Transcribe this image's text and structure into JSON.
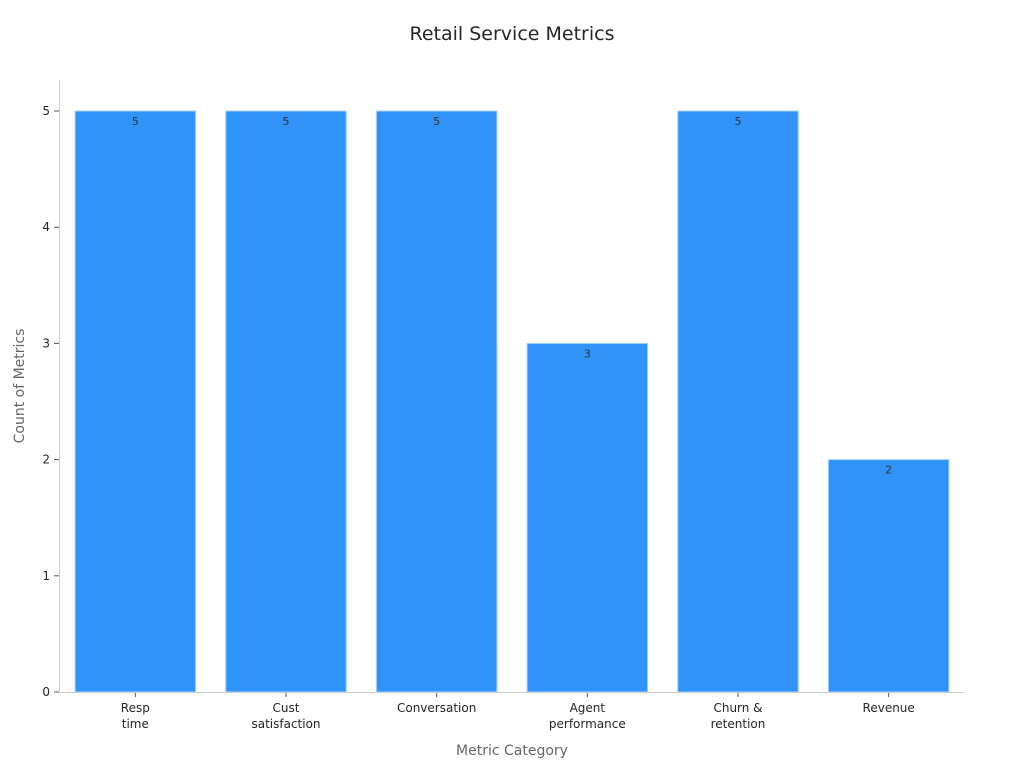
{
  "chart_data": {
    "type": "bar",
    "title": "Retail Service Metrics",
    "xlabel": "Metric Category",
    "ylabel": "Count of Metrics",
    "categories": [
      "Resp\ntime",
      "Cust\nsatisfaction",
      "Conversation",
      "Agent\nperformance",
      "Churn &\nretention",
      "Revenue"
    ],
    "values": [
      5,
      5,
      5,
      3,
      5,
      2
    ],
    "ylim": [
      0,
      5
    ],
    "yticks": [
      0,
      1,
      2,
      3,
      4,
      5
    ],
    "grid": false,
    "legend": "none",
    "bar_color": "#2f93f8",
    "bar_edge_color": "#a9d3fc"
  }
}
